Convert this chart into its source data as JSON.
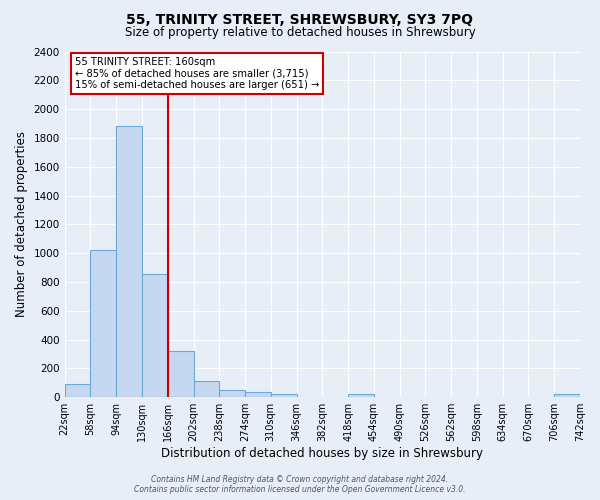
{
  "title": "55, TRINITY STREET, SHREWSBURY, SY3 7PQ",
  "subtitle": "Size of property relative to detached houses in Shrewsbury",
  "xlabel": "Distribution of detached houses by size in Shrewsbury",
  "ylabel": "Number of detached properties",
  "footer_line1": "Contains HM Land Registry data © Crown copyright and database right 2024.",
  "footer_line2": "Contains public sector information licensed under the Open Government Licence v3.0.",
  "bin_edges": [
    22,
    58,
    94,
    130,
    166,
    202,
    238,
    274,
    310,
    346,
    382,
    418,
    454,
    490,
    526,
    562,
    598,
    634,
    670,
    706,
    742
  ],
  "bin_labels": [
    "22sqm",
    "58sqm",
    "94sqm",
    "130sqm",
    "166sqm",
    "202sqm",
    "238sqm",
    "274sqm",
    "310sqm",
    "346sqm",
    "382sqm",
    "418sqm",
    "454sqm",
    "490sqm",
    "526sqm",
    "562sqm",
    "598sqm",
    "634sqm",
    "670sqm",
    "706sqm",
    "742sqm"
  ],
  "counts": [
    90,
    1020,
    1880,
    855,
    320,
    115,
    50,
    35,
    20,
    0,
    0,
    20,
    0,
    0,
    0,
    0,
    0,
    0,
    0,
    20
  ],
  "bar_color": "#c5d8ef",
  "bar_edge_color": "#6aaad4",
  "vline_x": 166,
  "vline_color": "#cc0000",
  "annotation_title": "55 TRINITY STREET: 160sqm",
  "annotation_line1": "← 85% of detached houses are smaller (3,715)",
  "annotation_line2": "15% of semi-detached houses are larger (651) →",
  "annotation_box_edge": "#cc0000",
  "ylim": [
    0,
    2400
  ],
  "yticks": [
    0,
    200,
    400,
    600,
    800,
    1000,
    1200,
    1400,
    1600,
    1800,
    2000,
    2200,
    2400
  ],
  "bg_color": "#e8eef8",
  "plot_bg_color": "#e8eef8",
  "grid_color": "#ffffff"
}
